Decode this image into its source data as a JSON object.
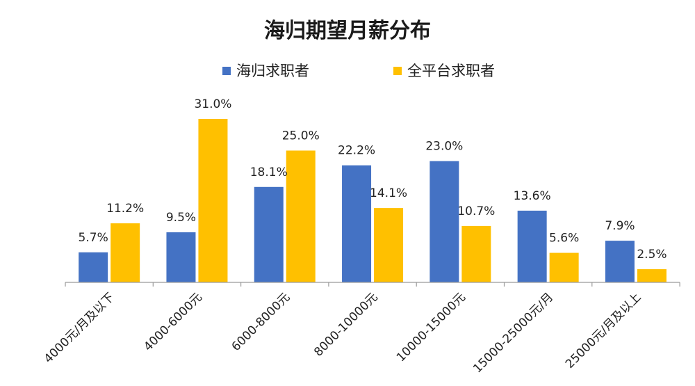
{
  "chart_data": {
    "type": "bar",
    "title": "海归期望月薪分布",
    "categories": [
      "4000元/月及以下",
      "4000-6000元",
      "6000-8000元",
      "8000-10000元",
      "10000-15000元",
      "15000-25000元/月",
      "25000元/月及以上"
    ],
    "series": [
      {
        "name": "海归求职者",
        "color": "#4472C4",
        "values": [
          5.7,
          9.5,
          18.1,
          22.2,
          23.0,
          13.6,
          7.9
        ],
        "labels": [
          "5.7%",
          "9.5%",
          "18.1%",
          "22.2%",
          "23.0%",
          "13.6%",
          "7.9%"
        ]
      },
      {
        "name": "全平台求职者",
        "color": "#FFC000",
        "values": [
          11.2,
          31.0,
          25.0,
          14.1,
          10.7,
          5.6,
          2.5
        ],
        "labels": [
          "11.2%",
          "31.0%",
          "25.0%",
          "14.1%",
          "10.7%",
          "5.6%",
          "2.5%"
        ]
      }
    ],
    "ylim": [
      0,
      31
    ],
    "legend_position": "top",
    "grid": false,
    "xlabel": "",
    "ylabel": ""
  }
}
